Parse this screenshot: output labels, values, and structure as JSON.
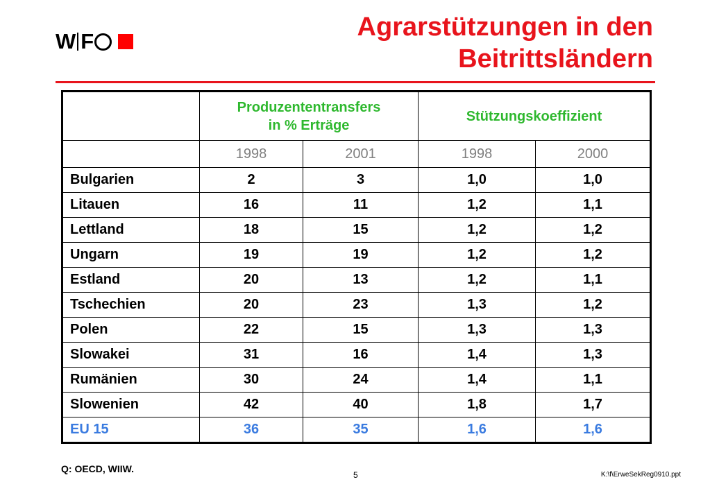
{
  "logo": {
    "w": "W",
    "f": "F"
  },
  "title": {
    "line1": "Agrarstützungen in den",
    "line2": "Beitrittsländern"
  },
  "table": {
    "group_headers": {
      "producer": {
        "line1": "Produzententransfers",
        "line2": "in % Erträge"
      },
      "support": "Stützungskoeffizient"
    },
    "years": [
      "1998",
      "2001",
      "1998",
      "2000"
    ],
    "rows": [
      {
        "country": "Bulgarien",
        "pt1998": "2",
        "pt2001": "3",
        "sk1998": "1,0",
        "sk2000": "1,0"
      },
      {
        "country": "Litauen",
        "pt1998": "16",
        "pt2001": "11",
        "sk1998": "1,2",
        "sk2000": "1,1"
      },
      {
        "country": "Lettland",
        "pt1998": "18",
        "pt2001": "15",
        "sk1998": "1,2",
        "sk2000": "1,2"
      },
      {
        "country": "Ungarn",
        "pt1998": "19",
        "pt2001": "19",
        "sk1998": "1,2",
        "sk2000": "1,2"
      },
      {
        "country": "Estland",
        "pt1998": "20",
        "pt2001": "13",
        "sk1998": "1,2",
        "sk2000": "1,1"
      },
      {
        "country": "Tschechien",
        "pt1998": "20",
        "pt2001": "23",
        "sk1998": "1,3",
        "sk2000": "1,2"
      },
      {
        "country": "Polen",
        "pt1998": "22",
        "pt2001": "15",
        "sk1998": "1,3",
        "sk2000": "1,3"
      },
      {
        "country": "Slowakei",
        "pt1998": "31",
        "pt2001": "16",
        "sk1998": "1,4",
        "sk2000": "1,3"
      },
      {
        "country": "Rumänien",
        "pt1998": "30",
        "pt2001": "24",
        "sk1998": "1,4",
        "sk2000": "1,1"
      },
      {
        "country": "Slowenien",
        "pt1998": "42",
        "pt2001": "40",
        "sk1998": "1,8",
        "sk2000": "1,7"
      },
      {
        "country": "EU 15",
        "pt1998": "36",
        "pt2001": "35",
        "sk1998": "1,6",
        "sk2000": "1,6"
      }
    ]
  },
  "footer": {
    "source": "Q: OECD, WIIW.",
    "page_number": "5",
    "file_path": "K:\\f\\ErweSekReg0910.ppt"
  },
  "colors": {
    "title_red": "#e8141c",
    "header_green": "#2eb82e",
    "year_gray": "#808080",
    "eu_blue": "#3a7be0",
    "logo_square": "#ff0000"
  }
}
